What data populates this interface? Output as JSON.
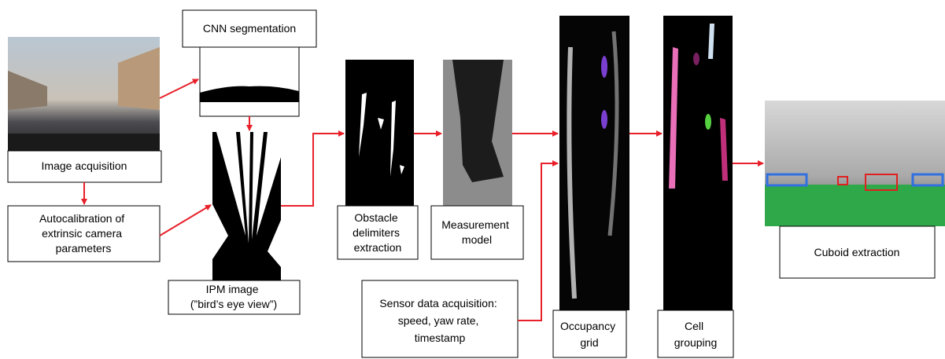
{
  "nodes": [
    {
      "label": [
        "Image acquisition"
      ]
    },
    {
      "label": [
        "Autocalibration of",
        "extrinsic camera",
        "parameters"
      ]
    },
    {
      "label": [
        "CNN segmentation"
      ]
    },
    {
      "label": [
        "IPM image",
        "(”bird’s eye view”)"
      ]
    },
    {
      "label": [
        "Obstacle",
        "delimiters",
        "extraction"
      ]
    },
    {
      "label": [
        "Measurement",
        "model"
      ]
    },
    {
      "label": [
        "Sensor data acquisition:",
        "speed, yaw rate,",
        "timestamp"
      ]
    },
    {
      "label": [
        "Occupancy",
        "grid"
      ]
    },
    {
      "label": [
        "Cell",
        "grouping"
      ]
    },
    {
      "label": [
        "Cuboid extraction"
      ]
    }
  ]
}
